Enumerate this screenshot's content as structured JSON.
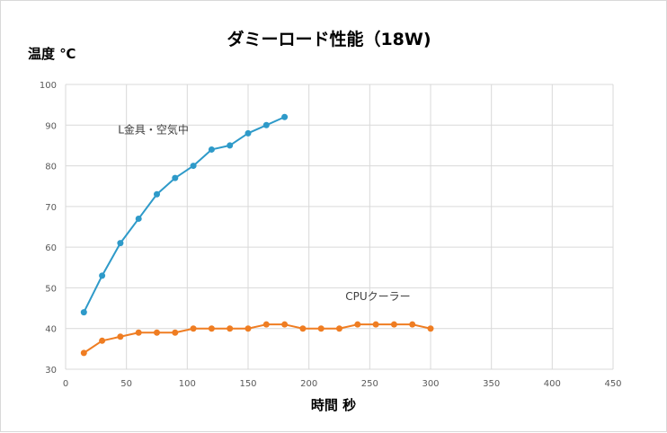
{
  "chart_data": {
    "type": "line",
    "title": "ダミーロード性能（18W)",
    "ylabel": "温度 ℃",
    "xlabel": "時間 秒",
    "xlim": [
      0,
      450
    ],
    "ylim": [
      30,
      100
    ],
    "xticks": [
      0,
      50,
      100,
      150,
      200,
      250,
      300,
      350,
      400,
      450
    ],
    "yticks": [
      30,
      40,
      50,
      60,
      70,
      80,
      90,
      100
    ],
    "grid": true,
    "legend": "none",
    "series": [
      {
        "name": "L金具・空気中",
        "color": "#2e9ac9",
        "x": [
          15,
          30,
          45,
          60,
          75,
          90,
          105,
          120,
          135,
          150,
          165,
          180
        ],
        "y": [
          44,
          53,
          61,
          67,
          73,
          77,
          80,
          84,
          85,
          88,
          90,
          92
        ]
      },
      {
        "name": "CPUクーラー",
        "color": "#ef7d22",
        "x": [
          15,
          30,
          45,
          60,
          75,
          90,
          105,
          120,
          135,
          150,
          165,
          180,
          195,
          210,
          225,
          240,
          255,
          270,
          285,
          300
        ],
        "y": [
          34,
          37,
          38,
          39,
          39,
          39,
          40,
          40,
          40,
          40,
          41,
          41,
          40,
          40,
          40,
          41,
          41,
          41,
          41,
          40
        ]
      }
    ],
    "annotations": [
      {
        "text": "L金具・空気中",
        "x": 43,
        "y": 88
      },
      {
        "text": "CPUクーラー",
        "x": 230,
        "y": 47
      }
    ]
  }
}
